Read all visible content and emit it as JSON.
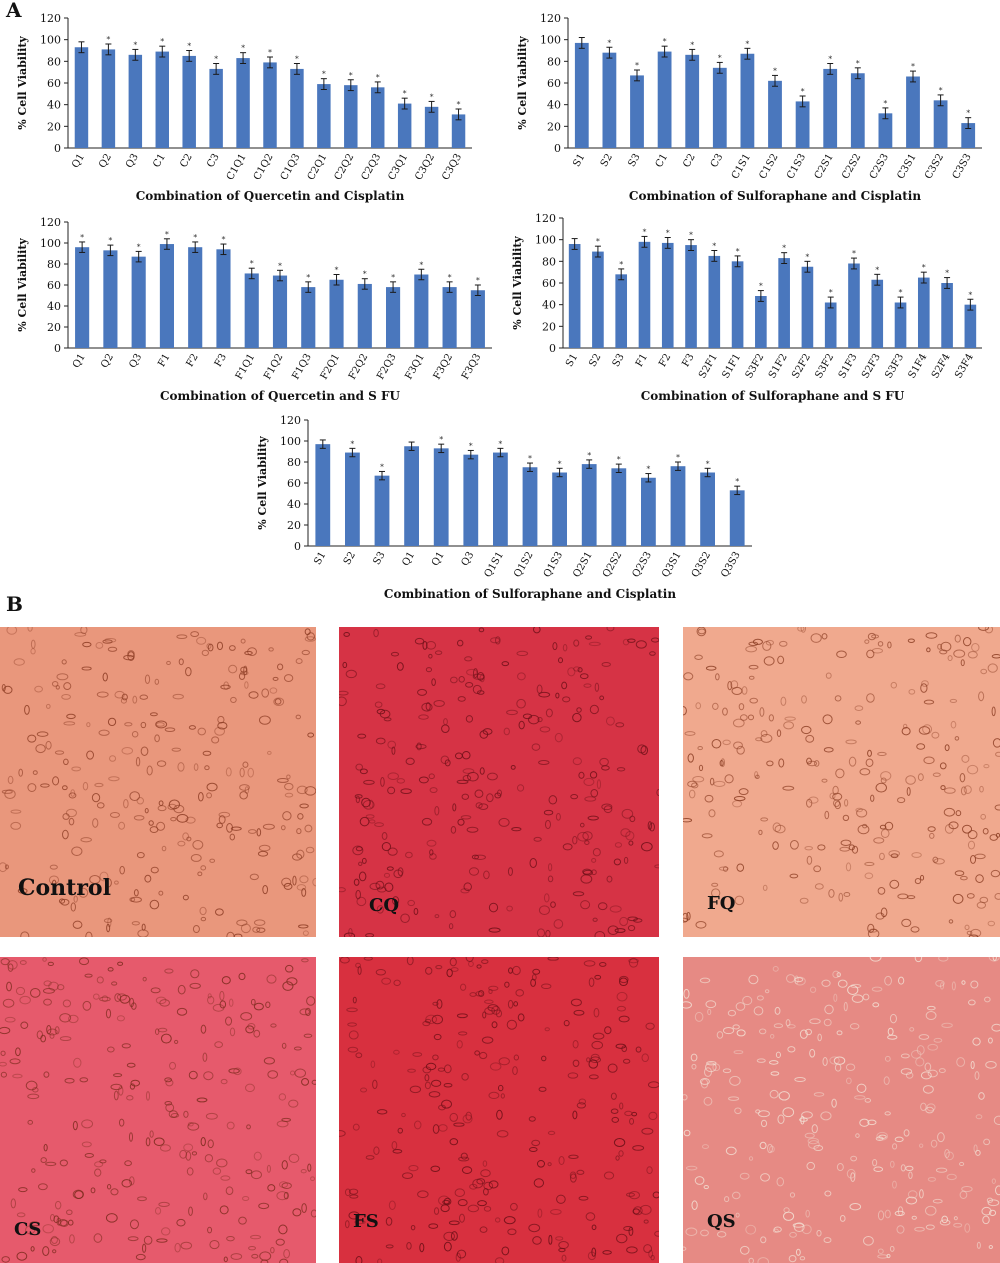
{
  "panel_a_label": "A",
  "panel_b_label": "B",
  "bar_color": "#4a77bd",
  "chart_data": [
    {
      "type": "bar",
      "title": "",
      "xlabel": "Combination of Quercetin and Cisplatin",
      "ylabel": "% Cell Viability",
      "ylim": [
        0,
        120
      ],
      "yticks": [
        0,
        20,
        40,
        60,
        80,
        100,
        120
      ],
      "grid": false,
      "categories": [
        "Q1",
        "Q2",
        "Q3",
        "C1",
        "C2",
        "C3",
        "C1Q1",
        "C1Q2",
        "C1Q3",
        "C2Q1",
        "C2Q2",
        "C2Q3",
        "C3Q1",
        "C3Q2",
        "C3Q3"
      ],
      "values": [
        93,
        91,
        86,
        89,
        85,
        73,
        83,
        79,
        73,
        59,
        58,
        56,
        41,
        38,
        31
      ],
      "errors": [
        5,
        5,
        5,
        5,
        5,
        5,
        5,
        5,
        5,
        5,
        5,
        5,
        5,
        5,
        5
      ],
      "significance": [
        "",
        "*",
        "*",
        "*",
        "*",
        "*",
        "*",
        "*",
        "*",
        "*",
        "*",
        "*",
        "*",
        "*",
        "*"
      ]
    },
    {
      "type": "bar",
      "title": "",
      "xlabel": "Combination of Sulforaphane and Cisplatin",
      "ylabel": "% Cell Viability",
      "ylim": [
        0,
        120
      ],
      "yticks": [
        0,
        20,
        40,
        60,
        80,
        100,
        120
      ],
      "grid": false,
      "categories": [
        "S1",
        "S2",
        "S3",
        "C1",
        "C2",
        "C3",
        "C1S1",
        "C1S2",
        "C1S3",
        "C2S1",
        "C2S2",
        "C2S3",
        "C3S1",
        "C3S2",
        "C3S3"
      ],
      "values": [
        97,
        88,
        67,
        89,
        86,
        74,
        87,
        62,
        43,
        73,
        69,
        32,
        66,
        44,
        23
      ],
      "errors": [
        5,
        5,
        5,
        5,
        5,
        5,
        5,
        5,
        5,
        5,
        5,
        5,
        5,
        5,
        5
      ],
      "significance": [
        "",
        "*",
        "*",
        "*",
        "*",
        "*",
        "*",
        "*",
        "*",
        "*",
        "*",
        "*",
        "*",
        "*",
        "*"
      ]
    },
    {
      "type": "bar",
      "title": "",
      "xlabel": "Combination of Quercetin and S FU",
      "ylabel": "% Cell Viability",
      "ylim": [
        0,
        120
      ],
      "yticks": [
        0,
        20,
        40,
        60,
        80,
        100,
        120
      ],
      "grid": false,
      "categories": [
        "Q1",
        "Q2",
        "Q3",
        "F1",
        "F2",
        "F3",
        "F1Q1",
        "F1Q2",
        "F1Q3",
        "F2Q1",
        "F2Q2",
        "F2Q3",
        "F3Q1",
        "F3Q2",
        "F3Q3"
      ],
      "values": [
        96,
        93,
        87,
        99,
        96,
        94,
        71,
        69,
        58,
        65,
        61,
        58,
        70,
        58,
        55
      ],
      "errors": [
        5,
        5,
        5,
        5,
        5,
        5,
        5,
        5,
        5,
        5,
        5,
        5,
        5,
        5,
        5
      ],
      "significance": [
        "*",
        "*",
        "*",
        "*",
        "*",
        "*",
        "*",
        "*",
        "*",
        "*",
        "*",
        "*",
        "*",
        "*",
        "*"
      ]
    },
    {
      "type": "bar",
      "title": "",
      "xlabel": "Combination of Sulforaphane and S FU",
      "ylabel": "% Cell Viability",
      "ylim": [
        0,
        120
      ],
      "yticks": [
        0,
        20,
        40,
        60,
        80,
        100,
        120
      ],
      "grid": false,
      "categories": [
        "S1",
        "S2",
        "S3",
        "F1",
        "F2",
        "F3",
        "S2F1",
        "S1F1",
        "S3F2",
        "S1F2",
        "S2F2",
        "S3F2",
        "S1F3",
        "S2F3",
        "S3F3",
        "S1F4",
        "S2F4",
        "S3F4"
      ],
      "values": [
        96,
        89,
        68,
        98,
        97,
        95,
        85,
        80,
        48,
        83,
        75,
        42,
        78,
        63,
        42,
        65,
        60,
        40
      ],
      "errors": [
        5,
        5,
        5,
        5,
        5,
        5,
        5,
        5,
        5,
        5,
        5,
        5,
        5,
        5,
        5,
        5,
        5,
        5
      ],
      "significance": [
        "",
        "*",
        "*",
        "*",
        "*",
        "*",
        "*",
        "*",
        "*",
        "*",
        "*",
        "*",
        "*",
        "*",
        "*",
        "*",
        "*",
        "*"
      ]
    },
    {
      "type": "bar",
      "title": "",
      "xlabel": "Combination of Sulforaphane and Cisplatin",
      "ylabel": "% Cell Viability",
      "ylim": [
        0,
        120
      ],
      "yticks": [
        0,
        20,
        40,
        60,
        80,
        100,
        120
      ],
      "grid": false,
      "categories": [
        "S1",
        "S2",
        "S3",
        "Q1",
        "Q1",
        "Q3",
        "Q1S1",
        "Q1S2",
        "Q1S3",
        "Q2S1",
        "Q2S2",
        "Q2S3",
        "Q3S1",
        "Q3S2",
        "Q3S3"
      ],
      "values": [
        97,
        89,
        67,
        95,
        93,
        87,
        89,
        75,
        70,
        78,
        74,
        65,
        76,
        70,
        53
      ],
      "errors": [
        4,
        4,
        4,
        4,
        4,
        4,
        4,
        4,
        4,
        4,
        4,
        4,
        4,
        4,
        4
      ],
      "significance": [
        "",
        "*",
        "*",
        "",
        "*",
        "*",
        "*",
        "*",
        "*",
        "*",
        "*",
        "*",
        "*",
        "*",
        "*"
      ]
    }
  ],
  "photos": [
    {
      "label": "Control",
      "tint": "#e9977c",
      "cell_color": "#8a3a22"
    },
    {
      "label": "CQ",
      "tint": "#d63345",
      "cell_color": "#6e1018"
    },
    {
      "label": "FQ",
      "tint": "#f0a98e",
      "cell_color": "#8a3c22"
    },
    {
      "label": "CS",
      "tint": "#e65a6c",
      "cell_color": "#7a2a1c"
    },
    {
      "label": "FS",
      "tint": "#d8303f",
      "cell_color": "#6a0f16"
    },
    {
      "label": "QS",
      "tint": "#e68a84",
      "cell_color": "#f3e2d6"
    }
  ]
}
